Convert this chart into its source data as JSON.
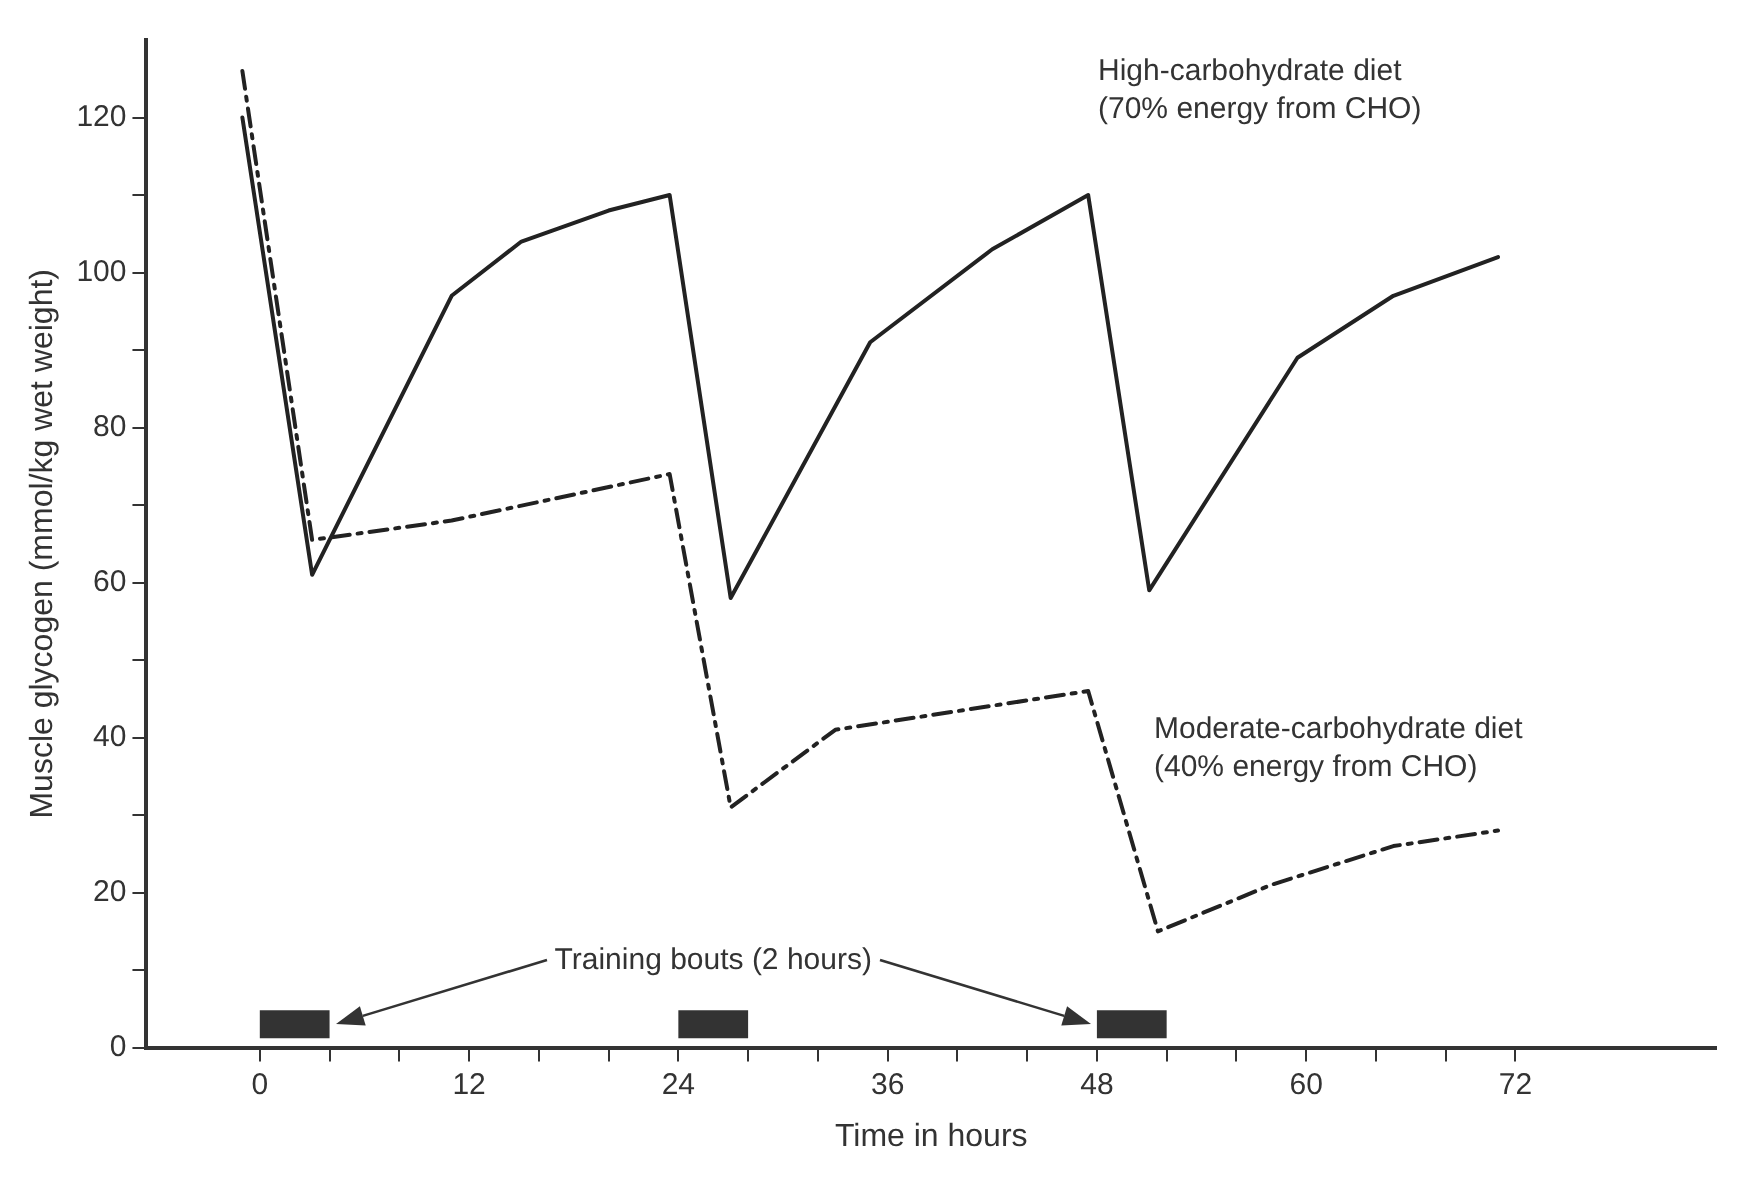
{
  "chart_data": {
    "type": "line",
    "xlabel": "Time in hours",
    "ylabel": "Muscle glycogen (mmol/kg wet weight)",
    "xlim": [
      -6.5,
      83.5
    ],
    "ylim": [
      0,
      130
    ],
    "xticks": [
      0,
      {
        "value": 4,
        "label": null
      },
      {
        "value": 8,
        "label": null
      },
      12,
      {
        "value": 16,
        "label": null
      },
      {
        "value": 20,
        "label": null
      },
      24,
      {
        "value": 28,
        "label": null
      },
      {
        "value": 32,
        "label": null
      },
      36,
      {
        "value": 40,
        "label": null
      },
      {
        "value": 44,
        "label": null
      },
      48,
      {
        "value": 52,
        "label": null
      },
      {
        "value": 56,
        "label": null
      },
      60,
      {
        "value": 64,
        "label": null
      },
      {
        "value": 68,
        "label": null
      },
      72
    ],
    "yticks": [
      0,
      {
        "value": 10,
        "label": null
      },
      20,
      {
        "value": 30,
        "label": null
      },
      40,
      {
        "value": 50,
        "label": null
      },
      60,
      {
        "value": 70,
        "label": null
      },
      80,
      {
        "value": 90,
        "label": null
      },
      100,
      {
        "value": 110,
        "label": null
      },
      120
    ],
    "grid": false,
    "legend": false,
    "marker": "none",
    "series": [
      {
        "name": "High-carbohydrate diet (70% energy from CHO)",
        "color": "#222222",
        "line_style": "solid",
        "x": [
          -1,
          3,
          11,
          15,
          20,
          23.5,
          27,
          35,
          42,
          47.5,
          51,
          59.5,
          65,
          71
        ],
        "values": [
          120,
          61,
          97,
          104,
          108,
          110,
          58,
          91,
          103,
          110,
          59,
          89,
          97,
          102
        ]
      },
      {
        "name": "Moderate-carbohydrate diet (40% energy from CHO)",
        "color": "#222222",
        "line_style": "dashed",
        "x": [
          -1,
          3,
          11,
          23.5,
          27,
          33,
          47.5,
          51.5,
          58,
          65,
          71
        ],
        "values": [
          126,
          65.5,
          68,
          74,
          31,
          41,
          46,
          15,
          21,
          26,
          28
        ]
      },
      {
        "color": "#333333",
        "line_style": "solid",
        "x": [
          0,
          4
        ],
        "values": [
          3,
          3
        ]
      },
      {
        "color": "#333333",
        "line_style": "solid",
        "x": [
          24,
          28
        ],
        "values": [
          3,
          3
        ]
      },
      {
        "color": "#333333",
        "line_style": "solid",
        "x": [
          48,
          52
        ],
        "values": [
          3,
          3
        ]
      }
    ],
    "annotations": [
      "Training bouts (2 hours)"
    ]
  }
}
